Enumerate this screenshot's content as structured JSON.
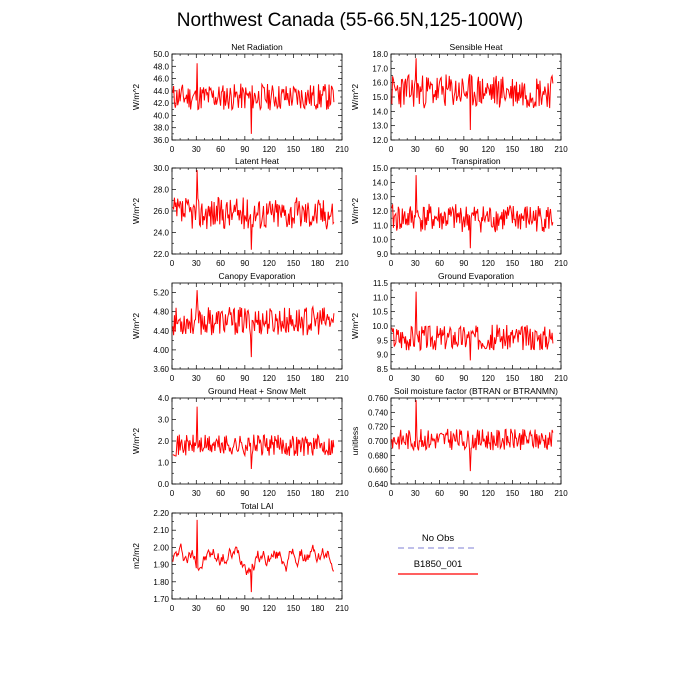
{
  "title": "Northwest Canada (55-66.5N,125-100W)",
  "chart_data": [
    {
      "type": "line",
      "title": "Net Radiation",
      "ylabel": "W/m^2",
      "ylim": [
        36,
        50
      ],
      "yticks": [
        36,
        38,
        40,
        42,
        44,
        46,
        48,
        50
      ],
      "yfmt": 1,
      "xlim": [
        0,
        210
      ],
      "xticks": [
        0,
        30,
        60,
        90,
        120,
        150,
        180,
        210
      ],
      "base": 43,
      "amp": 2.2,
      "spike": [
        48.5,
        37
      ],
      "seed": 11,
      "series": [
        {
          "name": "B1850_001",
          "values": []
        }
      ]
    },
    {
      "type": "line",
      "title": "Sensible Heat",
      "ylabel": "W/m^2",
      "ylim": [
        12,
        18
      ],
      "yticks": [
        12,
        13,
        14,
        15,
        16,
        17,
        18
      ],
      "yfmt": 1,
      "xlim": [
        0,
        210
      ],
      "xticks": [
        0,
        30,
        60,
        90,
        120,
        150,
        180,
        210
      ],
      "base": 15.4,
      "amp": 1.2,
      "spike": [
        17.7,
        12.7
      ],
      "seed": 23,
      "series": [
        {
          "name": "B1850_001",
          "values": []
        }
      ]
    },
    {
      "type": "line",
      "title": "Latent Heat",
      "ylabel": "W/m^2",
      "ylim": [
        22,
        30
      ],
      "yticks": [
        22,
        24,
        26,
        28,
        30
      ],
      "yfmt": 1,
      "xlim": [
        0,
        210
      ],
      "xticks": [
        0,
        30,
        60,
        90,
        120,
        150,
        180,
        210
      ],
      "base": 25.8,
      "amp": 1.5,
      "spike": [
        29.8,
        22.4
      ],
      "seed": 37,
      "series": [
        {
          "name": "B1850_001",
          "values": []
        }
      ]
    },
    {
      "type": "line",
      "title": "Transpiration",
      "ylabel": "W/m^2",
      "ylim": [
        9,
        15
      ],
      "yticks": [
        9,
        10,
        11,
        12,
        13,
        14,
        15
      ],
      "yfmt": 1,
      "xlim": [
        0,
        210
      ],
      "xticks": [
        0,
        30,
        60,
        90,
        120,
        150,
        180,
        210
      ],
      "base": 11.5,
      "amp": 1.0,
      "spike": [
        14.5,
        9.4
      ],
      "seed": 41,
      "series": [
        {
          "name": "B1850_001",
          "values": []
        }
      ]
    },
    {
      "type": "line",
      "title": "Canopy Evaporation",
      "ylabel": "W/m^2",
      "ylim": [
        3.6,
        5.4
      ],
      "yticks": [
        3.6,
        4.0,
        4.4,
        4.8,
        5.2
      ],
      "yfmt": 2,
      "xlim": [
        0,
        210
      ],
      "xticks": [
        0,
        30,
        60,
        90,
        120,
        150,
        180,
        210
      ],
      "base": 4.6,
      "amp": 0.3,
      "spike": [
        5.25,
        3.85
      ],
      "seed": 53,
      "series": [
        {
          "name": "B1850_001",
          "values": []
        }
      ]
    },
    {
      "type": "line",
      "title": "Ground Evaporation",
      "ylabel": "W/m^2",
      "ylim": [
        8.5,
        11.5
      ],
      "yticks": [
        8.5,
        9.0,
        9.5,
        10.0,
        10.5,
        11.0,
        11.5
      ],
      "yfmt": 1,
      "xlim": [
        0,
        210
      ],
      "xticks": [
        0,
        30,
        60,
        90,
        120,
        150,
        180,
        210
      ],
      "base": 9.6,
      "amp": 0.45,
      "spike": [
        11.2,
        8.8
      ],
      "seed": 67,
      "series": [
        {
          "name": "B1850_001",
          "values": []
        }
      ]
    },
    {
      "type": "line",
      "title": "Ground Heat + Snow Melt",
      "ylabel": "W/m^2",
      "ylim": [
        0,
        4
      ],
      "yticks": [
        0,
        1,
        2,
        3,
        4
      ],
      "yfmt": 1,
      "xlim": [
        0,
        210
      ],
      "xticks": [
        0,
        30,
        60,
        90,
        120,
        150,
        180,
        210
      ],
      "base": 1.8,
      "amp": 0.5,
      "spike": [
        3.6,
        0.7
      ],
      "seed": 71,
      "series": [
        {
          "name": "B1850_001",
          "values": []
        }
      ]
    },
    {
      "type": "line",
      "title": "Soil moisture factor (BTRAN or BTRANMN)",
      "ylabel": "unitless",
      "ylim": [
        0.64,
        0.76
      ],
      "yticks": [
        0.64,
        0.66,
        0.68,
        0.7,
        0.72,
        0.74,
        0.76
      ],
      "yfmt": 3,
      "xlim": [
        0,
        210
      ],
      "xticks": [
        0,
        30,
        60,
        90,
        120,
        150,
        180,
        210
      ],
      "base": 0.702,
      "amp": 0.015,
      "spike": [
        0.757,
        0.658
      ],
      "seed": 83,
      "series": [
        {
          "name": "B1850_001",
          "values": []
        }
      ]
    },
    {
      "type": "line",
      "title": "Total LAI",
      "ylabel": "m2/m2",
      "ylim": [
        1.7,
        2.2
      ],
      "yticks": [
        1.7,
        1.8,
        1.9,
        2.0,
        2.1,
        2.2
      ],
      "yfmt": 2,
      "xlim": [
        0,
        210
      ],
      "xticks": [
        0,
        30,
        60,
        90,
        120,
        150,
        180,
        210
      ],
      "base": 1.95,
      "amp": 0.1,
      "spike": [
        2.16,
        1.74
      ],
      "seed": 97,
      "smooth": true,
      "series": [
        {
          "name": "B1850_001",
          "values": []
        }
      ]
    }
  ],
  "legend": {
    "items": [
      {
        "name": "No Obs",
        "color": "#9999dd",
        "dashed": true
      },
      {
        "name": "B1850_001",
        "color": "#ff0000",
        "dashed": false
      }
    ]
  },
  "colors": {
    "line": "#ff0000",
    "axis": "#000000"
  }
}
